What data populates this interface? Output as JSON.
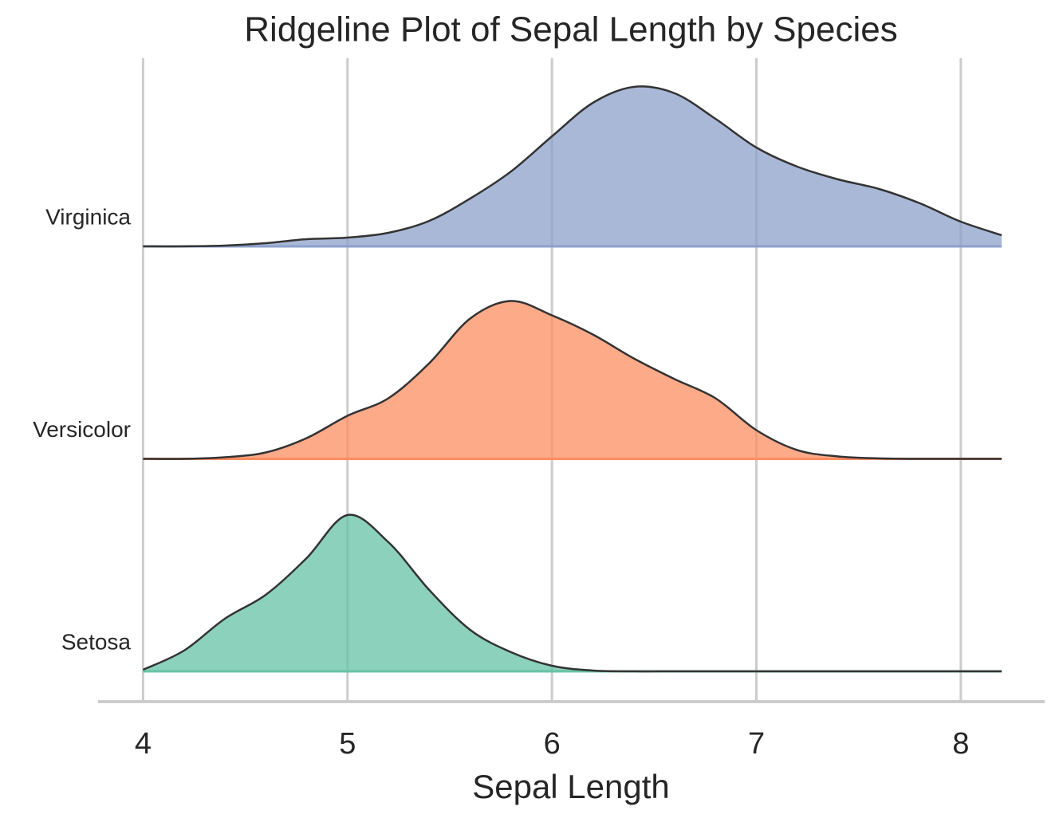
{
  "chart_data": {
    "type": "ridgeline",
    "title": "Ridgeline Plot of Sepal Length by Species",
    "x_label": "Sepal Length",
    "x": [
      4.0,
      4.2,
      4.4,
      4.6,
      4.8,
      5.0,
      5.2,
      5.4,
      5.6,
      5.8,
      6.0,
      6.2,
      6.4,
      6.6,
      6.8,
      7.0,
      7.2,
      7.4,
      7.6,
      7.8,
      8.0,
      8.2
    ],
    "series": [
      {
        "name": "Setosa",
        "color": "#66c2a5",
        "values": [
          0.01,
          0.13,
          0.33,
          0.48,
          0.71,
          0.98,
          0.81,
          0.51,
          0.26,
          0.12,
          0.035,
          0.005,
          0,
          0,
          0,
          0,
          0,
          0,
          0,
          0,
          0,
          0
        ]
      },
      {
        "name": "Versicolor",
        "color": "#fc8d62",
        "values": [
          0,
          0,
          0.01,
          0.04,
          0.13,
          0.27,
          0.38,
          0.6,
          0.88,
          0.99,
          0.9,
          0.78,
          0.63,
          0.5,
          0.38,
          0.18,
          0.055,
          0.015,
          0.003,
          0,
          0,
          0
        ]
      },
      {
        "name": "Virginica",
        "color": "#8da0cb",
        "values": [
          0,
          0,
          0.005,
          0.02,
          0.045,
          0.055,
          0.085,
          0.16,
          0.3,
          0.47,
          0.69,
          0.9,
          1.0,
          0.96,
          0.8,
          0.62,
          0.5,
          0.42,
          0.36,
          0.27,
          0.155,
          0.07
        ]
      }
    ],
    "xlim": [
      3.78,
      8.41
    ],
    "xticks": [
      4,
      5,
      6,
      7,
      8
    ],
    "grid": true
  }
}
